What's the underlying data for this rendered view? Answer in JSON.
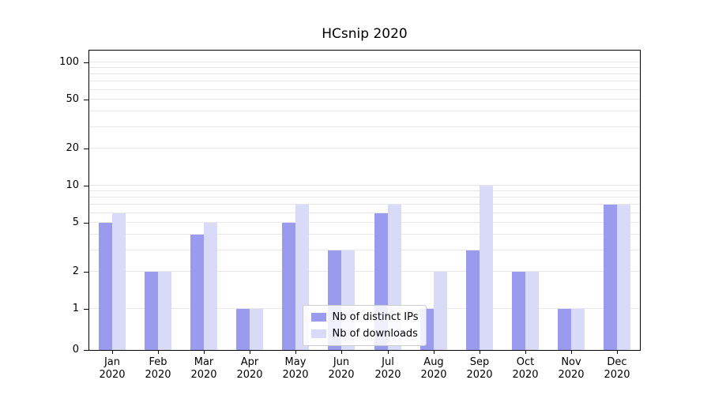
{
  "title": "HCsnip 2020",
  "chart_data": {
    "type": "bar",
    "title": "HCsnip 2020",
    "categories": [
      "Jan 2020",
      "Feb 2020",
      "Mar 2020",
      "Apr 2020",
      "May 2020",
      "Jun 2020",
      "Jul 2020",
      "Aug 2020",
      "Sep 2020",
      "Oct 2020",
      "Nov 2020",
      "Dec 2020"
    ],
    "series": [
      {
        "name": "Nb of distinct IPs",
        "color": "#9a9aef",
        "values": [
          5,
          2,
          4,
          1,
          5,
          3,
          6,
          1,
          3,
          2,
          1,
          7
        ]
      },
      {
        "name": "Nb of downloads",
        "color": "#d9d9f8",
        "values": [
          6,
          2,
          5,
          1,
          7,
          3,
          7,
          2,
          10,
          2,
          1,
          7
        ]
      }
    ],
    "y_axis": {
      "scale": "symlog",
      "major_ticks": [
        0,
        1,
        2,
        5,
        10,
        20,
        50,
        100
      ],
      "minor_gridlines": [
        3,
        4,
        6,
        7,
        8,
        9,
        30,
        40,
        60,
        70,
        80,
        90
      ],
      "ylim": [
        0,
        160
      ]
    },
    "xlabel": "",
    "ylabel": "",
    "grid": true,
    "legend_position": "lower center"
  },
  "colors": {
    "grid": "#e8e8e8",
    "spine": "#000000",
    "background": "#ffffff",
    "text": "#000000"
  }
}
